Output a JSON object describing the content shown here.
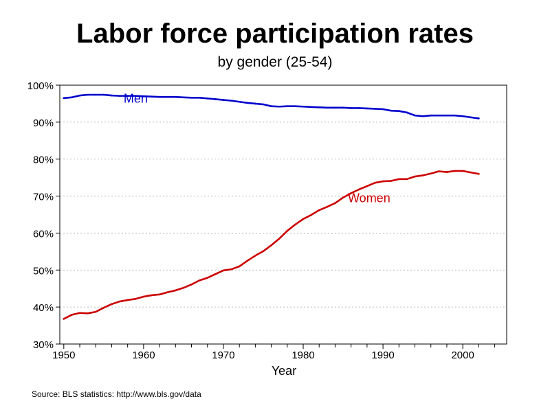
{
  "chart_data": {
    "type": "line",
    "title": "Labor force participation rates",
    "subtitle": "by gender (25-54)",
    "xlabel": "Year",
    "ylabel": "",
    "xlim": [
      1949.5,
      2005.5
    ],
    "ylim": [
      30,
      100
    ],
    "x_ticks": [
      1950,
      1960,
      1970,
      1980,
      1990,
      2000
    ],
    "y_ticks": [
      30,
      40,
      50,
      60,
      70,
      80,
      90,
      100
    ],
    "y_tick_labels": [
      "30%",
      "40%",
      "50%",
      "60%",
      "70%",
      "80%",
      "90%",
      "100%"
    ],
    "grid": "horizontal dashed",
    "x": [
      1950,
      1951,
      1952,
      1953,
      1954,
      1955,
      1956,
      1957,
      1958,
      1959,
      1960,
      1961,
      1962,
      1963,
      1964,
      1965,
      1966,
      1967,
      1968,
      1969,
      1970,
      1971,
      1972,
      1973,
      1974,
      1975,
      1976,
      1977,
      1978,
      1979,
      1980,
      1981,
      1982,
      1983,
      1984,
      1985,
      1986,
      1987,
      1988,
      1989,
      1990,
      1991,
      1992,
      1993,
      1994,
      1995,
      1996,
      1997,
      1998,
      1999,
      2000,
      2001,
      2002
    ],
    "series": [
      {
        "name": "Men",
        "color": "#0000cc",
        "values": [
          96.5,
          96.7,
          97.2,
          97.4,
          97.4,
          97.4,
          97.2,
          97.1,
          97.1,
          97.1,
          97.0,
          96.9,
          96.8,
          96.8,
          96.8,
          96.7,
          96.6,
          96.6,
          96.4,
          96.2,
          96.0,
          95.8,
          95.5,
          95.2,
          95.0,
          94.8,
          94.3,
          94.2,
          94.3,
          94.3,
          94.2,
          94.1,
          94.0,
          93.9,
          93.9,
          93.9,
          93.8,
          93.8,
          93.7,
          93.6,
          93.5,
          93.1,
          93.0,
          92.6,
          91.8,
          91.6,
          91.8,
          91.8,
          91.8,
          91.8,
          91.6,
          91.3,
          91.0
        ]
      },
      {
        "name": "Women",
        "color": "#cc0000",
        "values": [
          36.8,
          37.9,
          38.4,
          38.3,
          38.7,
          39.8,
          40.8,
          41.5,
          41.9,
          42.2,
          42.8,
          43.2,
          43.4,
          44.0,
          44.5,
          45.2,
          46.1,
          47.2,
          47.9,
          48.9,
          49.9,
          50.2,
          51.0,
          52.5,
          53.9,
          55.1,
          56.7,
          58.5,
          60.6,
          62.3,
          63.8,
          64.9,
          66.2,
          67.1,
          68.1,
          69.6,
          70.8,
          71.8,
          72.7,
          73.6,
          74.0,
          74.1,
          74.6,
          74.6,
          75.3,
          75.6,
          76.1,
          76.7,
          76.5,
          76.8,
          76.8,
          76.4,
          76.0
        ]
      }
    ],
    "series_labels": [
      {
        "text": "Men",
        "x": 1957.5,
        "y": 95.3
      },
      {
        "text": "Women",
        "x": 1985.6,
        "y": 68.3
      }
    ]
  },
  "footer": {
    "source": "Source: BLS statistics: http://www.bls.gov/data"
  },
  "colors": {
    "axis": "#000000",
    "grid": "#a0a0a0",
    "men": "#0000cc",
    "women": "#cc0000"
  }
}
